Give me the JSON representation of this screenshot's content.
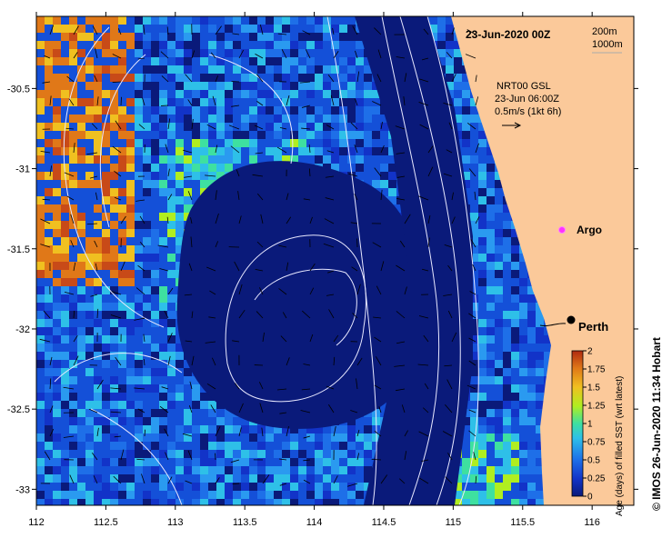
{
  "map": {
    "date_title": "23-Jun-2020 00Z",
    "depth_legend": [
      "200m",
      "1000m"
    ],
    "current_note": [
      "NRT00 GSL",
      "23-Jun 06:00Z",
      "0.5m/s (1kt 6h)"
    ],
    "places": [
      {
        "name": "Argo",
        "lon": 115.85,
        "lat": -31.45,
        "marker": "magenta-circle-icon"
      },
      {
        "name": "Perth",
        "lon": 115.86,
        "lat": -31.95,
        "marker": "black-dot-icon"
      }
    ],
    "credit": "© IMOS 26-Jun-2020 11:34 Hobart",
    "colors": {
      "land": "#fbc99a",
      "deep_ocean": "#0a1a7a",
      "contour": "#e8e8ff"
    }
  },
  "chart_data": {
    "type": "heatmap",
    "x_ticks": [
      "112",
      "112.5",
      "113",
      "113.5",
      "114",
      "114.5",
      "115",
      "115.5",
      "116"
    ],
    "y_ticks": [
      "-30.5",
      "-31",
      "-31.5",
      "-32",
      "-32.5",
      "-33"
    ],
    "xlim": [
      112,
      116.3
    ],
    "ylim": [
      -33.1,
      -30.05
    ],
    "colorbar": {
      "title": "Age (days) of filled SST (wrt latest)",
      "labels": [
        "2",
        "1.75",
        "1.5",
        "1.25",
        "1",
        "0.75",
        "0.5",
        "0.25",
        "0"
      ],
      "range": [
        0,
        2
      ]
    }
  }
}
